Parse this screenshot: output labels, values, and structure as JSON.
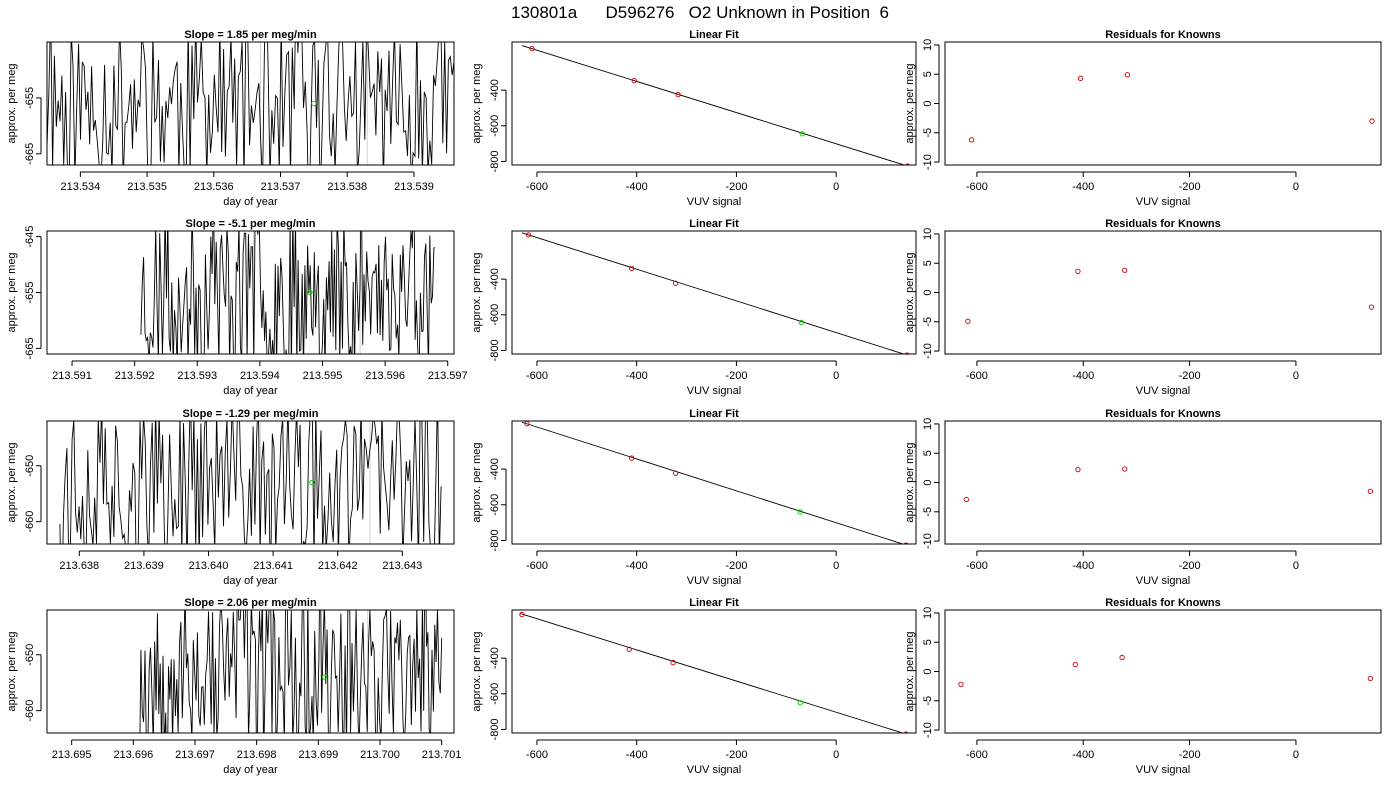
{
  "page": {
    "title": "130801a      D596276   O2 Unknown in Position  6",
    "colors": {
      "trace": "#000000",
      "known_point": "#cc0000",
      "unknown_point": "#00cc00",
      "marker_line": "#d3d3d3"
    }
  },
  "chart_data": [
    {
      "type": "line",
      "title": "Slope =  1.85  per meg/min",
      "xlabel": "day of year",
      "ylabel": "approx. per meg",
      "xlim": [
        213.5335,
        213.5396
      ],
      "ylim": [
        -667,
        -645
      ],
      "xticks": [
        "213.534",
        "213.535",
        "213.536",
        "213.537",
        "213.538",
        "213.539"
      ],
      "xtick_values": [
        213.534,
        213.535,
        213.536,
        213.537,
        213.538,
        213.539
      ],
      "yticks": [
        "-665",
        "-655"
      ],
      "ytick_values": [
        -665,
        -655
      ],
      "marker_lines": [
        213.5367,
        213.5383
      ],
      "unknown_point": {
        "x": 213.5375,
        "y": -656
      },
      "trace": {
        "x_start": 213.5335,
        "x_end": 213.5396,
        "seed": 11
      }
    },
    {
      "type": "scatter",
      "title": "Linear Fit",
      "xlabel": "VUV signal",
      "ylabel": "approx. per meg",
      "xlim": [
        -650,
        160
      ],
      "ylim": [
        -820,
        -130
      ],
      "xticks": [
        "-600",
        "-400",
        "-200",
        "0"
      ],
      "xtick_values": [
        -600,
        -400,
        -200,
        0
      ],
      "yticks": [
        "-800",
        "-600",
        "-400"
      ],
      "ytick_values": [
        -800,
        -600,
        -400
      ],
      "known_points": [
        {
          "x": -610,
          "y": -167
        },
        {
          "x": -405,
          "y": -347
        },
        {
          "x": -317,
          "y": -425
        },
        {
          "x": 143,
          "y": -826
        }
      ],
      "unknown_point": {
        "x": -68,
        "y": -645
      },
      "fit_line": {
        "x": [
          -630,
          143
        ],
        "y": [
          -150,
          -826
        ]
      }
    },
    {
      "type": "scatter",
      "title": "Residuals for Knowns",
      "xlabel": "VUV signal",
      "ylabel": "approx. per meg",
      "xlim": [
        -660,
        160
      ],
      "ylim": [
        -10.5,
        10.5
      ],
      "xticks": [
        "-600",
        "-400",
        "-200",
        "0"
      ],
      "xtick_values": [
        -600,
        -400,
        -200,
        0
      ],
      "yticks": [
        "-10",
        "-5",
        "0",
        "5",
        "10"
      ],
      "ytick_values": [
        -10,
        -5,
        0,
        5,
        10
      ],
      "known_points": [
        {
          "x": -610,
          "y": -6.2
        },
        {
          "x": -405,
          "y": 4.3
        },
        {
          "x": -317,
          "y": 4.9
        },
        {
          "x": 143,
          "y": -3.0
        }
      ]
    },
    {
      "type": "line",
      "title": "Slope =  -5.1  per meg/min",
      "xlabel": "day of year",
      "ylabel": "approx. per meg",
      "xlim": [
        213.5906,
        213.5971
      ],
      "ylim": [
        -666,
        -644
      ],
      "xticks": [
        "213.591",
        "213.592",
        "213.593",
        "213.594",
        "213.595",
        "213.596",
        "213.597"
      ],
      "xtick_values": [
        213.591,
        213.592,
        213.593,
        213.594,
        213.595,
        213.596,
        213.597
      ],
      "yticks": [
        "-665",
        "-655",
        "-645"
      ],
      "ytick_values": [
        -665,
        -655,
        -645
      ],
      "marker_lines": [
        213.5939,
        213.5956
      ],
      "unknown_point": {
        "x": 213.5948,
        "y": -655
      },
      "trace": {
        "x_start": 213.5921,
        "x_end": 213.5968,
        "seed": 23
      }
    },
    {
      "type": "scatter",
      "title": "Linear Fit",
      "xlabel": "VUV signal",
      "ylabel": "approx. per meg",
      "xlim": [
        -650,
        160
      ],
      "ylim": [
        -820,
        -130
      ],
      "xticks": [
        "-600",
        "-400",
        "-200",
        "0"
      ],
      "xtick_values": [
        -600,
        -400,
        -200,
        0
      ],
      "yticks": [
        "-800",
        "-600",
        "-400"
      ],
      "ytick_values": [
        -800,
        -600,
        -400
      ],
      "known_points": [
        {
          "x": -617,
          "y": -152
        },
        {
          "x": -410,
          "y": -340
        },
        {
          "x": -322,
          "y": -423
        },
        {
          "x": 142,
          "y": -826
        }
      ],
      "unknown_point": {
        "x": -70,
        "y": -643
      },
      "fit_line": {
        "x": [
          -630,
          142
        ],
        "y": [
          -140,
          -826
        ]
      }
    },
    {
      "type": "scatter",
      "title": "Residuals for Knowns",
      "xlabel": "VUV signal",
      "ylabel": "approx. per meg",
      "xlim": [
        -660,
        160
      ],
      "ylim": [
        -10.5,
        10.5
      ],
      "xticks": [
        "-600",
        "-400",
        "-200",
        "0"
      ],
      "xtick_values": [
        -600,
        -400,
        -200,
        0
      ],
      "yticks": [
        "-10",
        "-5",
        "0",
        "5",
        "10"
      ],
      "ytick_values": [
        -10,
        -5,
        0,
        5,
        10
      ],
      "known_points": [
        {
          "x": -617,
          "y": -4.9
        },
        {
          "x": -410,
          "y": 3.6
        },
        {
          "x": -322,
          "y": 3.8
        },
        {
          "x": 142,
          "y": -2.5
        }
      ]
    },
    {
      "type": "line",
      "title": "Slope =  -1.29  per meg/min",
      "xlabel": "day of year",
      "ylabel": "approx. per meg",
      "xlim": [
        213.6375,
        213.6438
      ],
      "ylim": [
        -664,
        -642
      ],
      "xticks": [
        "213.638",
        "213.639",
        "213.640",
        "213.641",
        "213.642",
        "213.643"
      ],
      "xtick_values": [
        213.638,
        213.639,
        213.64,
        213.641,
        213.642,
        213.643
      ],
      "yticks": [
        "-660",
        "-650"
      ],
      "ytick_values": [
        -660,
        -650
      ],
      "marker_lines": [
        213.6408,
        213.6425
      ],
      "unknown_point": {
        "x": 213.6416,
        "y": -653
      },
      "trace": {
        "x_start": 213.6377,
        "x_end": 213.6436,
        "seed": 37
      }
    },
    {
      "type": "scatter",
      "title": "Linear Fit",
      "xlabel": "VUV signal",
      "ylabel": "approx. per meg",
      "xlim": [
        -650,
        160
      ],
      "ylim": [
        -820,
        -130
      ],
      "xticks": [
        "-600",
        "-400",
        "-200",
        "0"
      ],
      "xtick_values": [
        -600,
        -400,
        -200,
        0
      ],
      "yticks": [
        "-800",
        "-600",
        "-400"
      ],
      "ytick_values": [
        -800,
        -600,
        -400
      ],
      "known_points": [
        {
          "x": -620,
          "y": -145
        },
        {
          "x": -410,
          "y": -338
        },
        {
          "x": -322,
          "y": -423
        },
        {
          "x": 140,
          "y": -826
        }
      ],
      "unknown_point": {
        "x": -72,
        "y": -640
      },
      "fit_line": {
        "x": [
          -630,
          140
        ],
        "y": [
          -137,
          -826
        ]
      }
    },
    {
      "type": "scatter",
      "title": "Residuals for Knowns",
      "xlabel": "VUV signal",
      "ylabel": "approx. per meg",
      "xlim": [
        -660,
        160
      ],
      "ylim": [
        -10.5,
        10.5
      ],
      "xticks": [
        "-600",
        "-400",
        "-200",
        "0"
      ],
      "xtick_values": [
        -600,
        -400,
        -200,
        0
      ],
      "yticks": [
        "-10",
        "-5",
        "0",
        "5",
        "10"
      ],
      "ytick_values": [
        -10,
        -5,
        0,
        5,
        10
      ],
      "known_points": [
        {
          "x": -620,
          "y": -2.9
        },
        {
          "x": -410,
          "y": 2.2
        },
        {
          "x": -322,
          "y": 2.3
        },
        {
          "x": 140,
          "y": -1.5
        }
      ]
    },
    {
      "type": "line",
      "title": "Slope =  2.06  per meg/min",
      "xlabel": "day of year",
      "ylabel": "approx. per meg",
      "xlim": [
        213.6946,
        213.7012
      ],
      "ylim": [
        -664,
        -642
      ],
      "xticks": [
        "213.695",
        "213.696",
        "213.697",
        "213.698",
        "213.699",
        "213.700",
        "213.701"
      ],
      "xtick_values": [
        213.695,
        213.696,
        213.697,
        213.698,
        213.699,
        213.7,
        213.701
      ],
      "yticks": [
        "-660",
        "-650"
      ],
      "ytick_values": [
        -660,
        -650
      ],
      "marker_lines": [
        213.6981,
        213.6998
      ],
      "unknown_point": {
        "x": 213.6991,
        "y": -654
      },
      "trace": {
        "x_start": 213.6961,
        "x_end": 213.701,
        "seed": 53
      }
    },
    {
      "type": "scatter",
      "title": "Linear Fit",
      "xlabel": "VUV signal",
      "ylabel": "approx. per meg",
      "xlim": [
        -650,
        160
      ],
      "ylim": [
        -820,
        -130
      ],
      "xticks": [
        "-600",
        "-400",
        "-200",
        "0"
      ],
      "xtick_values": [
        -600,
        -400,
        -200,
        0
      ],
      "yticks": [
        "-800",
        "-600",
        "-400"
      ],
      "ytick_values": [
        -800,
        -600,
        -400
      ],
      "known_points": [
        {
          "x": -630,
          "y": -155
        },
        {
          "x": -415,
          "y": -350
        },
        {
          "x": -327,
          "y": -425
        },
        {
          "x": 140,
          "y": -826
        }
      ],
      "unknown_point": {
        "x": -72,
        "y": -650
      },
      "fit_line": {
        "x": [
          -633,
          140
        ],
        "y": [
          -150,
          -826
        ]
      }
    },
    {
      "type": "scatter",
      "title": "Residuals for Knowns",
      "xlabel": "VUV signal",
      "ylabel": "approx. per meg",
      "xlim": [
        -660,
        160
      ],
      "ylim": [
        -10.5,
        10.5
      ],
      "xticks": [
        "-600",
        "-400",
        "-200",
        "0"
      ],
      "xtick_values": [
        -600,
        -400,
        -200,
        0
      ],
      "yticks": [
        "-10",
        "-5",
        "0",
        "5",
        "10"
      ],
      "ytick_values": [
        -10,
        -5,
        0,
        5,
        10
      ],
      "known_points": [
        {
          "x": -630,
          "y": -2.2
        },
        {
          "x": -415,
          "y": 1.2
        },
        {
          "x": -327,
          "y": 2.4
        },
        {
          "x": 140,
          "y": -1.2
        }
      ]
    }
  ]
}
